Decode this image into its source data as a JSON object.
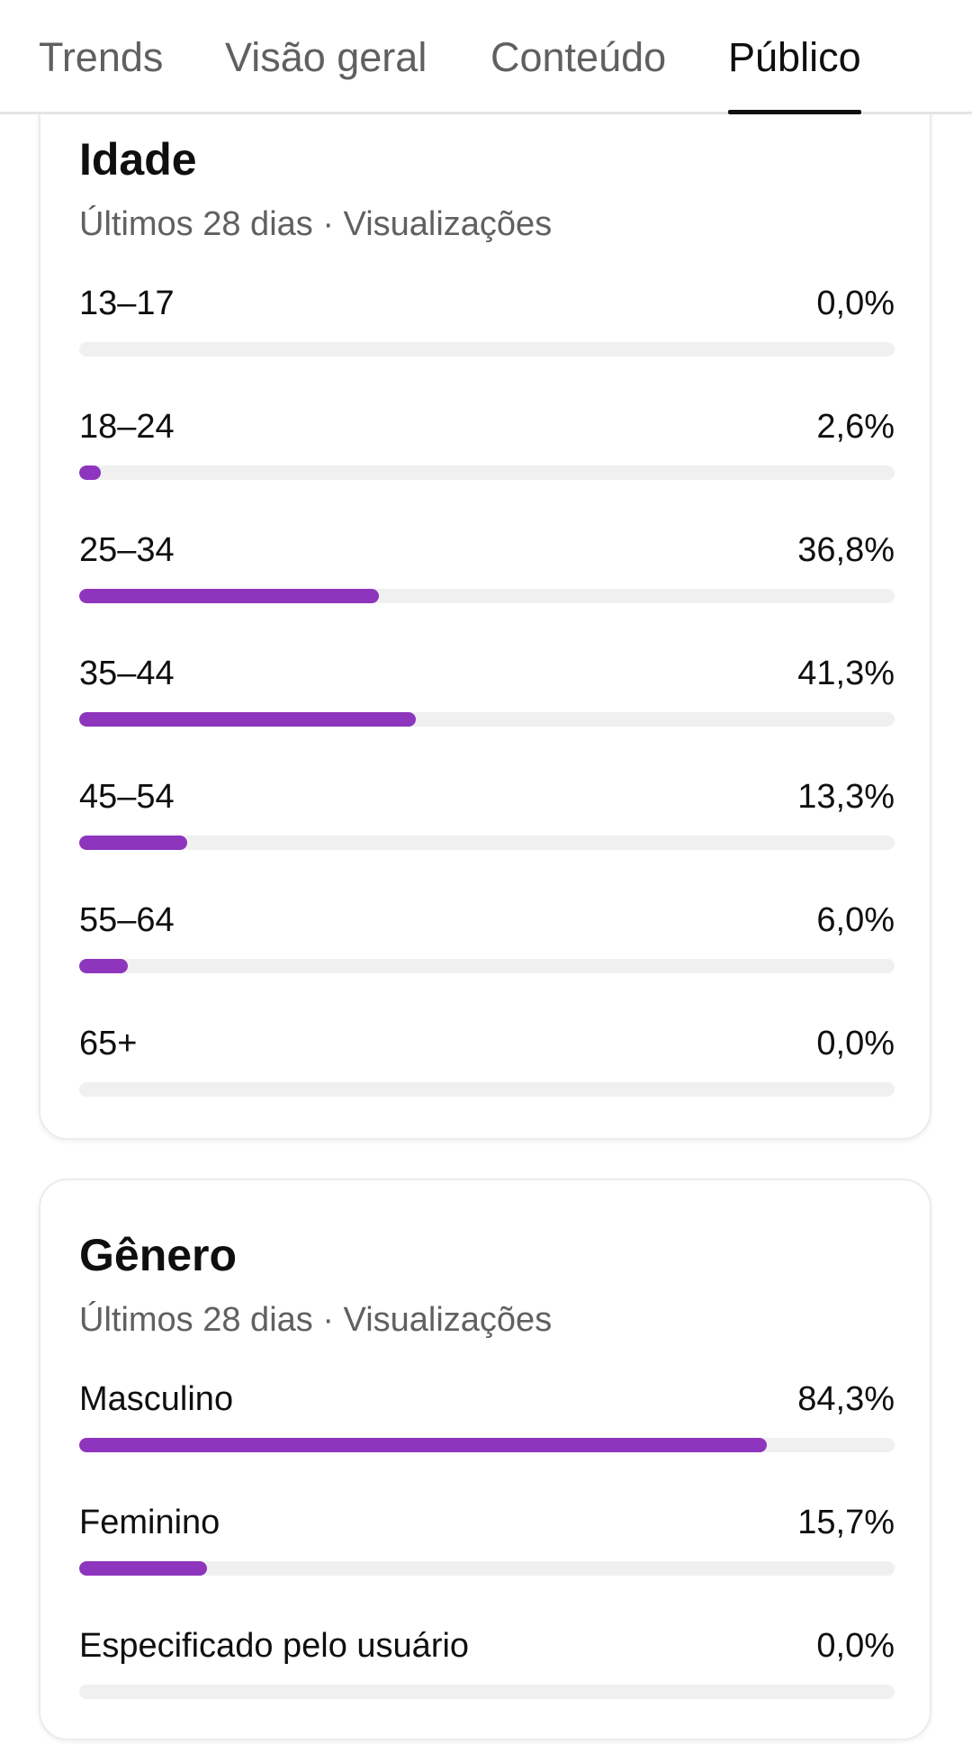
{
  "tabs": [
    {
      "label": "Trends",
      "active": false
    },
    {
      "label": "Visão geral",
      "active": false
    },
    {
      "label": "Conteúdo",
      "active": false
    },
    {
      "label": "Público",
      "active": true
    }
  ],
  "colors": {
    "accent": "#8e35bd",
    "track": "#f0f0f0",
    "text": "#0f0f0f",
    "muted": "#606060"
  },
  "age_card": {
    "title": "Idade",
    "subtitle": "Últimos 28 dias · Visualizações",
    "rows": [
      {
        "label": "13–17",
        "value": "0,0%",
        "percent": 0.0
      },
      {
        "label": "18–24",
        "value": "2,6%",
        "percent": 2.6
      },
      {
        "label": "25–34",
        "value": "36,8%",
        "percent": 36.8
      },
      {
        "label": "35–44",
        "value": "41,3%",
        "percent": 41.3
      },
      {
        "label": "45–54",
        "value": "13,3%",
        "percent": 13.3
      },
      {
        "label": "55–64",
        "value": "6,0%",
        "percent": 6.0
      },
      {
        "label": "65+",
        "value": "0,0%",
        "percent": 0.0
      }
    ]
  },
  "gender_card": {
    "title": "Gênero",
    "subtitle": "Últimos 28 dias · Visualizações",
    "rows": [
      {
        "label": "Masculino",
        "value": "84,3%",
        "percent": 84.3
      },
      {
        "label": "Feminino",
        "value": "15,7%",
        "percent": 15.7
      },
      {
        "label": "Especificado pelo usuário",
        "value": "0,0%",
        "percent": 0.0
      }
    ]
  }
}
